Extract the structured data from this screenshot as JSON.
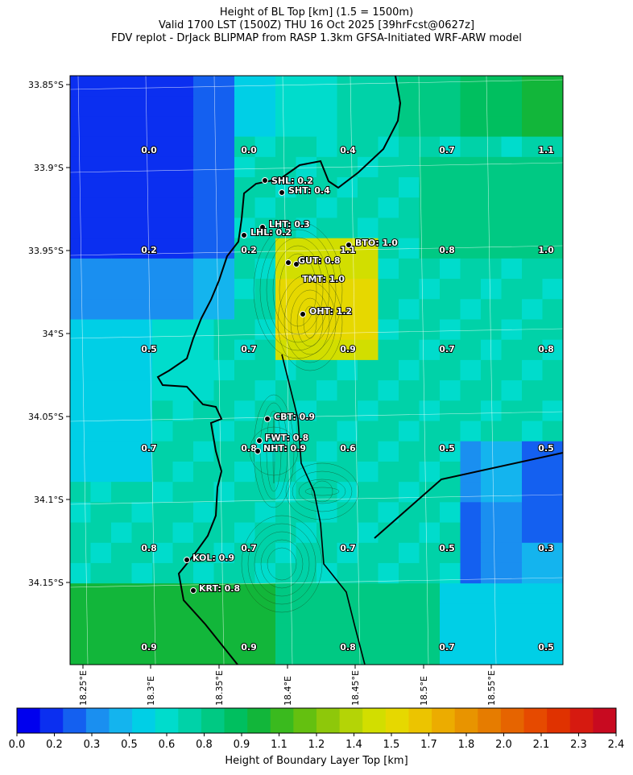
{
  "title": {
    "line1": "Height of BL Top [km] (1.5 = 1500m)",
    "line2": "Valid 1700 LST (1500Z) THU 16 Oct 2025 [39hrFcst@0627z]",
    "line3": "FDV replot - DrJack BLIPMAP from RASP 1.3km GFSA-Initiated WRF-ARW model"
  },
  "map": {
    "lat_labels": [
      "33.85°S",
      "33.9°S",
      "33.95°S",
      "34°S",
      "34.05°S",
      "34.1°S",
      "34.15°S"
    ],
    "lon_labels": [
      "18.25°E",
      "18.3°E",
      "18.35°E",
      "18.4°E",
      "18.45°E",
      "18.5°E",
      "18.55°E"
    ],
    "grid_values": [
      [
        "0.0",
        "0.0",
        "0.4",
        "0.7",
        "1.1"
      ],
      [
        "0.2",
        "0.2",
        "1.1",
        "0.8",
        "1.0"
      ],
      [
        "0.5",
        "0.7",
        "0.9",
        "0.7",
        "0.8"
      ],
      [
        "0.7",
        "0.8",
        "0.6",
        "0.5",
        "0.5"
      ],
      [
        "0.8",
        "0.7",
        "0.7",
        "0.5",
        "0.3"
      ],
      [
        "0.9",
        "0.9",
        "0.8",
        "0.7",
        "0.5"
      ]
    ],
    "sites": [
      {
        "label": "SHL: 0.2"
      },
      {
        "label": "SHT: 0.4"
      },
      {
        "label": "LHT: 0.3"
      },
      {
        "label": "LHL: 0.2"
      },
      {
        "label": "BTO: 1.0"
      },
      {
        "label": "GUT: 0.8"
      },
      {
        "label": "TMT: 1.0"
      },
      {
        "label": "OHT: 1.2"
      },
      {
        "label": "CBT: 0.9"
      },
      {
        "label": "FWT: 0.8"
      },
      {
        "label": "NHT: 0.9"
      },
      {
        "label": "KOL: 0.9"
      },
      {
        "label": "KRT: 0.8"
      }
    ]
  },
  "colorbar": {
    "label": "Height of Boundary Layer Top [km]",
    "ticks": [
      "0.0",
      "0.2",
      "0.3",
      "0.5",
      "0.6",
      "0.8",
      "0.9",
      "1.1",
      "1.2",
      "1.4",
      "1.5",
      "1.7",
      "1.8",
      "2.0",
      "2.1",
      "2.3",
      "2.4"
    ],
    "colors": [
      "#0000ee",
      "#0b2ff0",
      "#1460f0",
      "#1a8ff0",
      "#14b4ee",
      "#00cfe6",
      "#00dccc",
      "#00d2a8",
      "#00c983",
      "#00bf5f",
      "#12b63a",
      "#3aba1e",
      "#64c010",
      "#8ec80a",
      "#b4d406",
      "#d2de00",
      "#e6d800",
      "#ecc400",
      "#ecac00",
      "#e89400",
      "#e67c00",
      "#e66400",
      "#e64a00",
      "#e03200",
      "#d61a10",
      "#c80a20"
    ]
  },
  "colors": {
    "coast": "#000000",
    "grid": "#ffffff"
  }
}
